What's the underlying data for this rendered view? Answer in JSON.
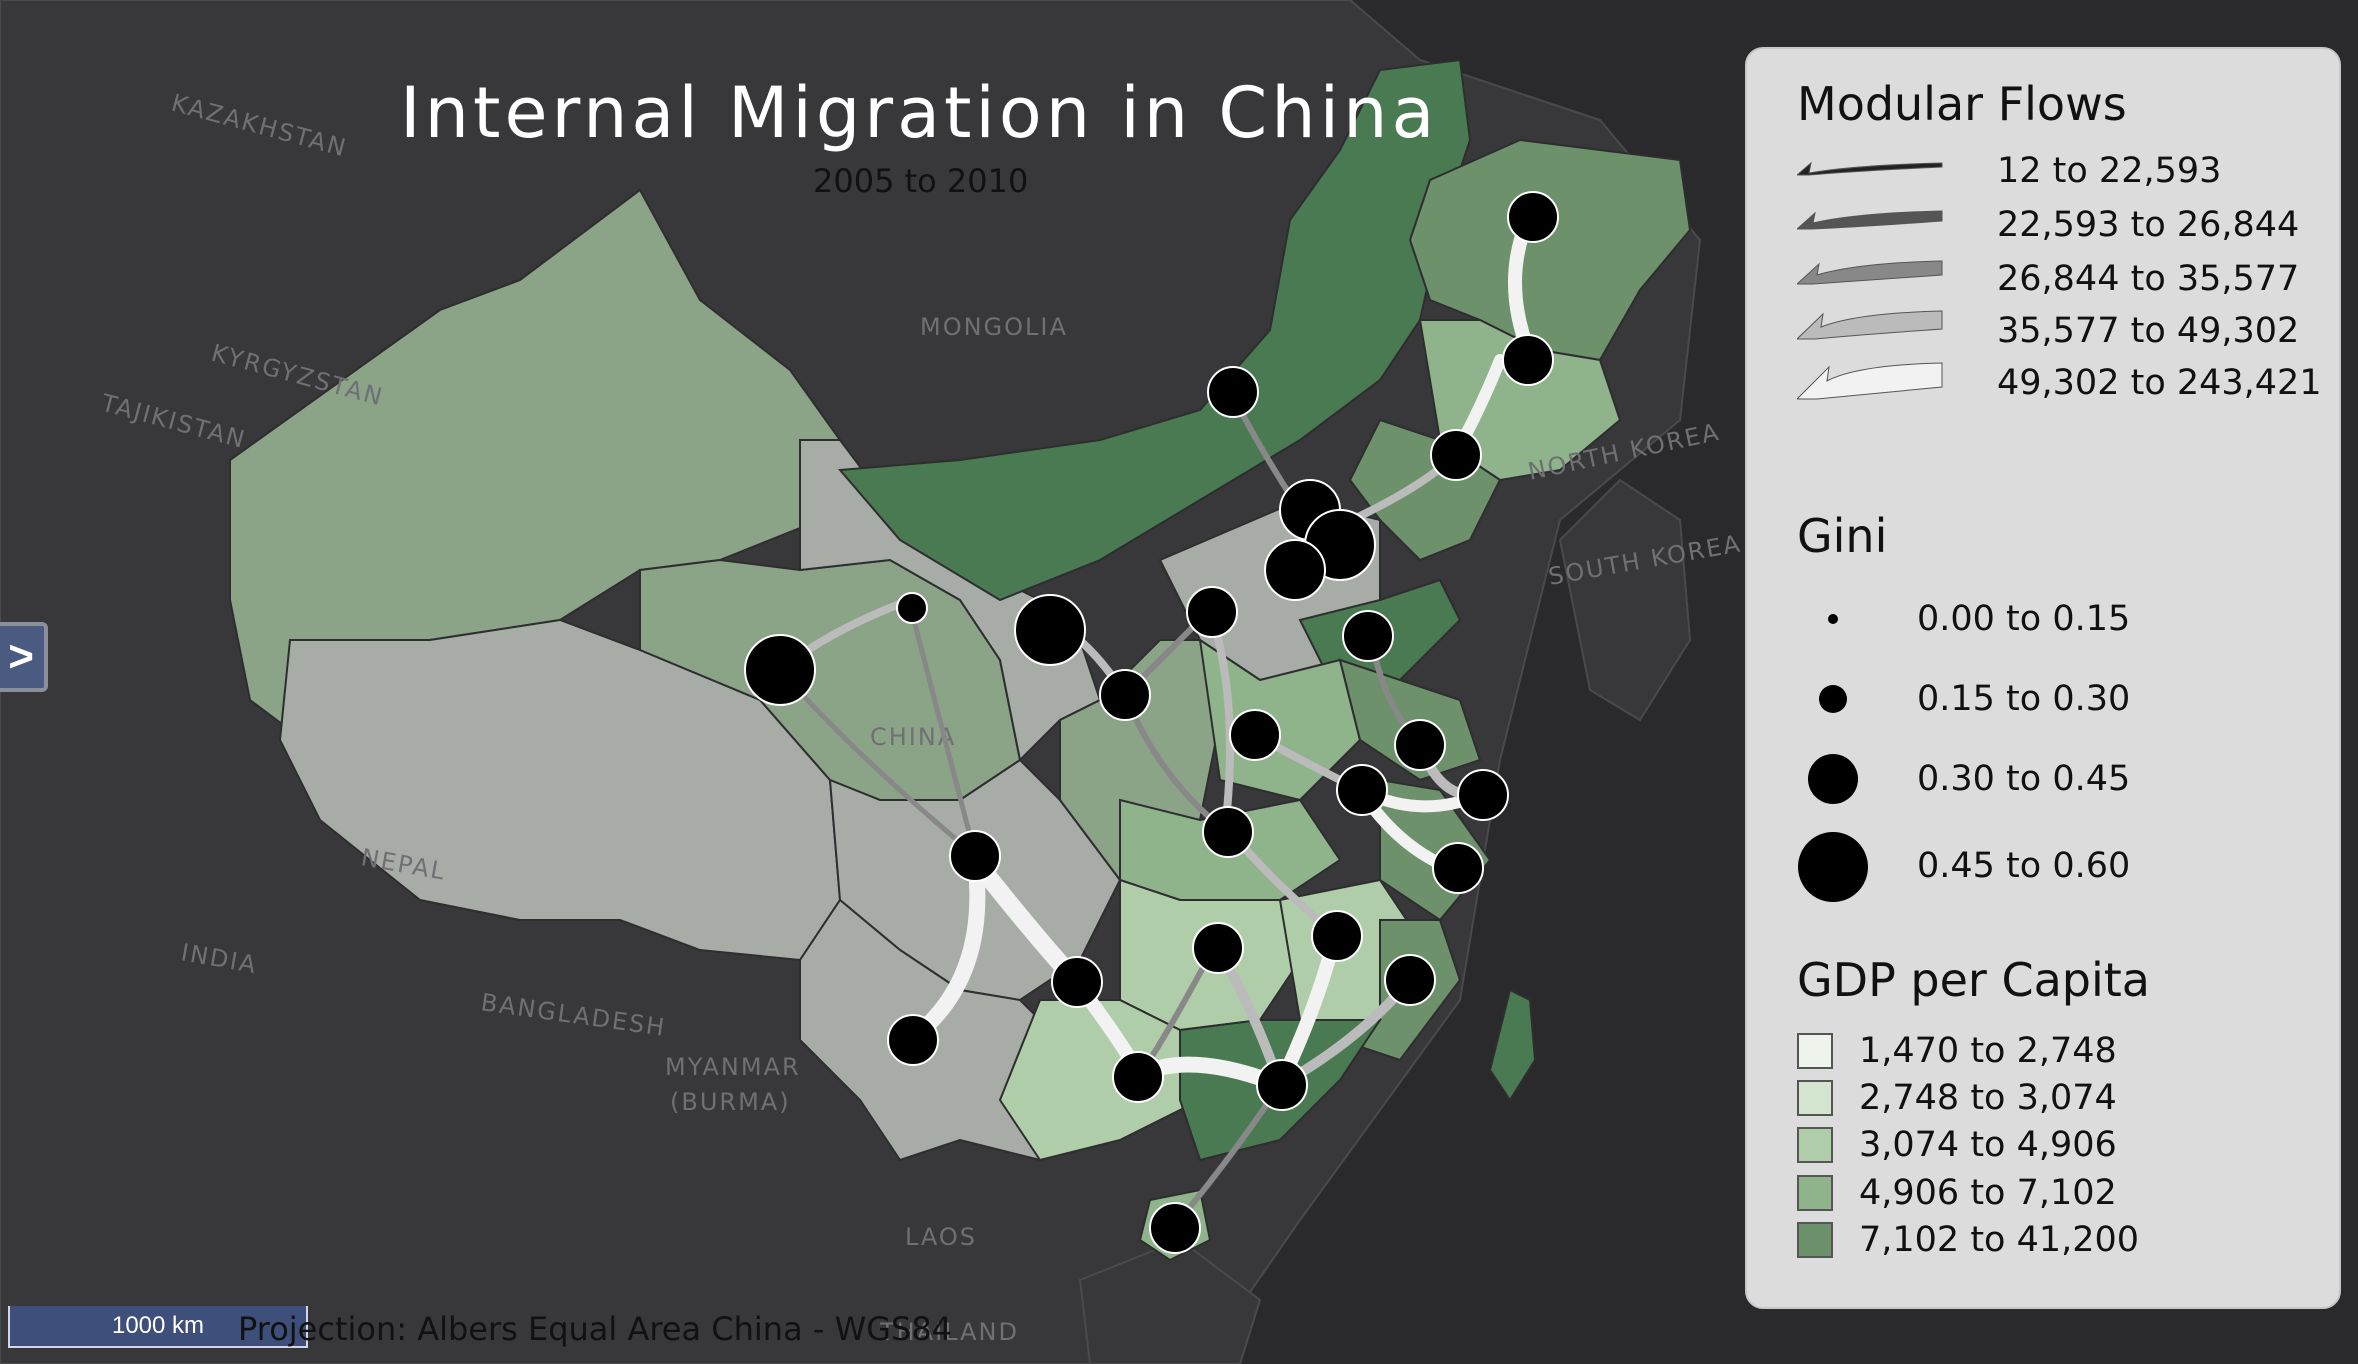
{
  "title": "Internal Migration in China",
  "subtitle": "2005 to 2010",
  "projection": "Projection: Albers Equal Area China - WGS84",
  "scale_bar": "1000 km",
  "panel_toggle": ">",
  "background_labels": [
    {
      "text": "KAZAKHSTAN"
    },
    {
      "text": "KYRGYZSTAN"
    },
    {
      "text": "TAJIKISTAN"
    },
    {
      "text": "MONGOLIA"
    },
    {
      "text": "NORTH KOREA"
    },
    {
      "text": "SOUTH KOREA"
    },
    {
      "text": "NEPAL"
    },
    {
      "text": "INDIA"
    },
    {
      "text": "BANGLADESH"
    },
    {
      "text": "MYANMAR"
    },
    {
      "text": "(BURMA)"
    },
    {
      "text": "LAOS"
    },
    {
      "text": "THAILAND"
    },
    {
      "text": "CHINA"
    }
  ],
  "legend": {
    "flows_title": "Modular Flows",
    "flows": [
      "12 to 22,593",
      "22,593 to 26,844",
      "26,844 to 35,577",
      "35,577 to 49,302",
      "49,302 to 243,421"
    ],
    "gini_title": "Gini",
    "gini": [
      "0.00 to 0.15",
      "0.15 to 0.30",
      "0.30 to 0.45",
      "0.45 to 0.60"
    ],
    "gdp_title": "GDP per Capita",
    "gdp": [
      "1,470 to 2,748",
      "2,748 to 3,074",
      "3,074 to 4,906",
      "4,906 to 7,102",
      "7,102 to 41,200"
    ]
  },
  "colors": {
    "ocean": "#2a2a2d",
    "land": "#38383b",
    "gdp_classes": [
      "#eef3ec",
      "#d3e5cf",
      "#b0cda9",
      "#8fb38a",
      "#6d916a"
    ],
    "gdp_dark": "#4a7a52",
    "gdp_gray": "#a8aca6",
    "flows": [
      "#222222",
      "#555555",
      "#888888",
      "#bbbbbb",
      "#f2f2f2"
    ]
  }
}
